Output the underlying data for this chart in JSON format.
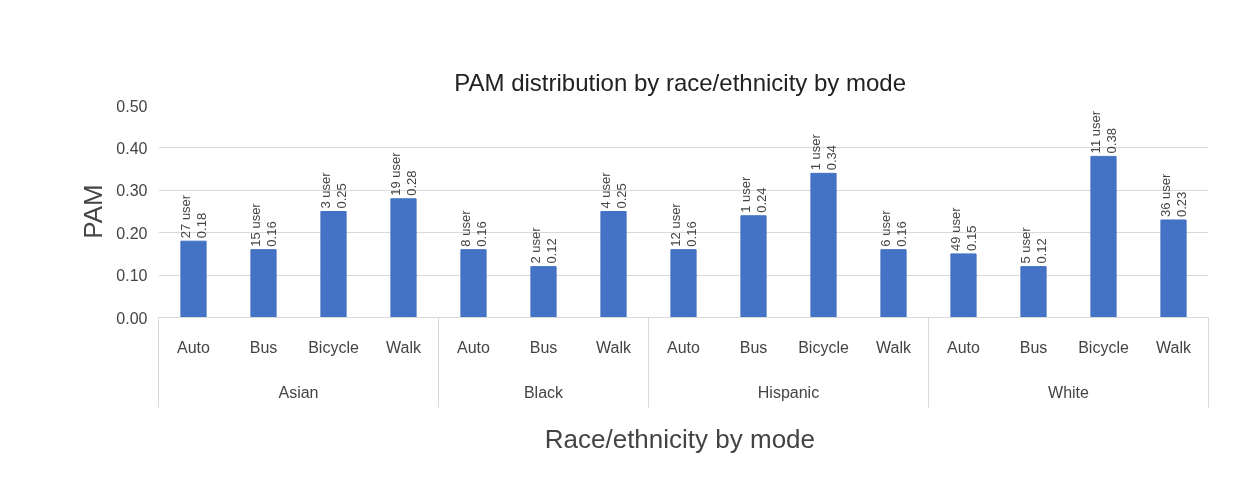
{
  "chart_data": {
    "type": "bar",
    "title": "PAM distribution by race/ethnicity by  mode",
    "xlabel": "Race/ethnicity by  mode",
    "ylabel": "PAM",
    "categories": [
      "Auto",
      "Bus",
      "Bicycle",
      "Walk",
      "Auto",
      "Bus",
      "Walk",
      "Auto",
      "Bus",
      "Bicycle",
      "Walk",
      "Auto",
      "Bus",
      "Bicycle",
      "Walk"
    ],
    "values": [
      0.18,
      0.16,
      0.25,
      0.28,
      0.16,
      0.12,
      0.25,
      0.16,
      0.24,
      0.34,
      0.16,
      0.15,
      0.12,
      0.38,
      0.23
    ],
    "value_labels": [
      "27 user\n0.18",
      "15 user\n0.16",
      "3 user\n0.25",
      "19 user\n0.28",
      "8 user\n0.16",
      "2 user\n0.12",
      "4 user\n0.25",
      "12 user\n0.16",
      "1 user\n0.24",
      "1 user\n0.34",
      "6 user\n0.16",
      "49 user\n0.15",
      "5 user\n0.12",
      "11 user\n0.38",
      "36 user\n0.23"
    ],
    "annotations": [
      "Asian",
      "Black",
      "Hispanic",
      "White"
    ],
    "color": "#4472c4",
    "ylim": [
      0,
      0.5
    ],
    "yticks": [
      {
        "value": 0,
        "label": "0.00"
      },
      {
        "value": 0.1,
        "label": "0.10"
      },
      {
        "value": 0.2,
        "label": "0.20"
      },
      {
        "value": 0.3,
        "label": "0.30"
      },
      {
        "value": 0.4,
        "label": "0.40"
      },
      {
        "value": 0.5,
        "label": "0.50"
      }
    ],
    "grid": "y"
  }
}
